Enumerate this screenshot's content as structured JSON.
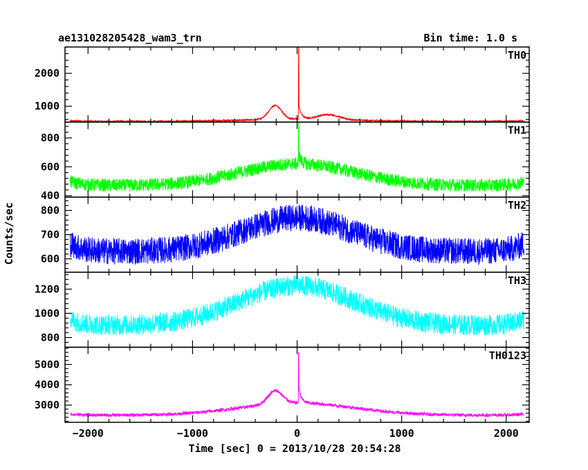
{
  "header": {
    "title": "ae131028205428_wam3_trn",
    "bin_time": "Bin time: 1.0 s"
  },
  "chart_data": {
    "type": "line",
    "xlabel": "Time [sec] 0 = 2013/10/28 20:54:28",
    "ylabel": "Counts/sec",
    "xlim": [
      -2220,
      2220
    ],
    "x_ticks": [
      -2000,
      -1000,
      0,
      1000,
      2000
    ],
    "panels": [
      {
        "name": "TH0",
        "color": "#ff0000",
        "ylim": [
          520,
          2800
        ],
        "y_ticks": [
          1000,
          2000
        ],
        "baseline": 540,
        "noise": 50,
        "bumps": [
          {
            "center": -210,
            "width": 60,
            "height": 420
          },
          {
            "center": 300,
            "width": 100,
            "height": 150
          },
          {
            "center": 0,
            "width": 500,
            "height": 70
          }
        ],
        "spike": {
          "x": 15,
          "peak": 2780,
          "tail": 450
        }
      },
      {
        "name": "TH1",
        "color": "#00ff00",
        "ylim": [
          390,
          910
        ],
        "y_ticks": [
          400,
          600,
          800
        ],
        "baseline": 470,
        "noise": 90,
        "bumps": [
          {
            "center": 0,
            "width": 550,
            "height": 150
          }
        ],
        "spike": {
          "x": 15,
          "peak": 890,
          "tail": 70
        }
      },
      {
        "name": "TH2",
        "color": "#0000ff",
        "ylim": [
          545,
          855
        ],
        "y_ticks": [
          600,
          700,
          800
        ],
        "baseline": 630,
        "noise": 110,
        "bumps": [
          {
            "center": 0,
            "width": 520,
            "height": 140
          }
        ],
        "spike": null
      },
      {
        "name": "TH3",
        "color": "#00ffff",
        "ylim": [
          720,
          1340
        ],
        "y_ticks": [
          800,
          1000,
          1200
        ],
        "baseline": 900,
        "noise": 170,
        "bumps": [
          {
            "center": 0,
            "width": 550,
            "height": 330
          }
        ],
        "spike": null
      },
      {
        "name": "TH0123",
        "color": "#ff00ff",
        "ylim": [
          2150,
          5850
        ],
        "y_ticks": [
          3000,
          4000,
          5000
        ],
        "baseline": 2500,
        "noise": 160,
        "bumps": [
          {
            "center": -210,
            "width": 70,
            "height": 650
          },
          {
            "center": 0,
            "width": 550,
            "height": 600
          }
        ],
        "spike": {
          "x": 15,
          "peak": 5600,
          "tail": 800
        }
      }
    ]
  }
}
